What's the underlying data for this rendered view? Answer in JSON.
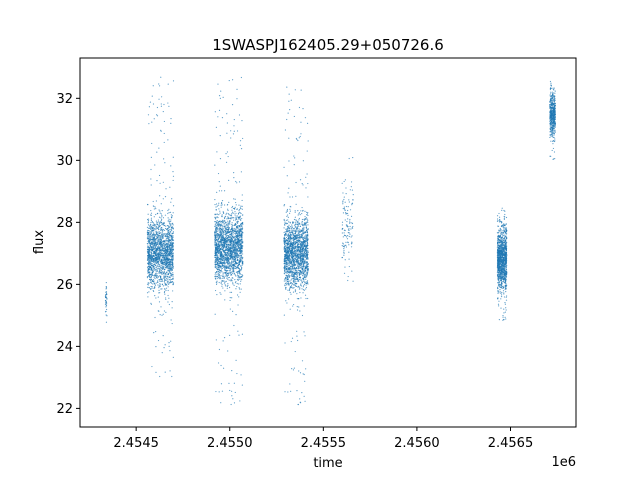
{
  "chart_data": {
    "type": "scatter",
    "title": "1SWASPJ162405.29+050726.6",
    "xlabel": "time",
    "ylabel": "flux",
    "x_offset_label": "1e6",
    "xlim": [
      2454200,
      2456850
    ],
    "ylim": [
      21.4,
      33.3
    ],
    "x_ticks": [
      2454500,
      2455000,
      2455500,
      2456000,
      2456500
    ],
    "x_tick_labels": [
      "2.4545",
      "2.4550",
      "2.4555",
      "2.4560",
      "2.4565"
    ],
    "y_ticks": [
      22,
      24,
      26,
      28,
      30,
      32
    ],
    "y_tick_labels": [
      "22",
      "24",
      "26",
      "28",
      "30",
      "32"
    ],
    "grid": false,
    "legend": "none",
    "marker_color": "#1f77b4",
    "clusters": [
      {
        "x_range": [
          2454335,
          2454345
        ],
        "y_center": 25.5,
        "y_spread": 0.5,
        "y_min": 24.7,
        "y_max": 26.2,
        "n": 40
      },
      {
        "x_range": [
          2454560,
          2454700
        ],
        "y_center": 27.0,
        "y_spread": 1.0,
        "y_min": 23.0,
        "y_max": 32.7,
        "n": 1800
      },
      {
        "x_range": [
          2454920,
          2455070
        ],
        "y_center": 27.2,
        "y_spread": 1.0,
        "y_min": 22.0,
        "y_max": 32.7,
        "n": 2000
      },
      {
        "x_range": [
          2455290,
          2455420
        ],
        "y_center": 27.0,
        "y_spread": 1.0,
        "y_min": 22.0,
        "y_max": 32.6,
        "n": 1800
      },
      {
        "x_range": [
          2455600,
          2455660
        ],
        "y_center": 28.0,
        "y_spread": 1.2,
        "y_min": 25.8,
        "y_max": 30.1,
        "n": 120
      },
      {
        "x_range": [
          2456430,
          2456480
        ],
        "y_center": 26.8,
        "y_spread": 0.9,
        "y_min": 24.8,
        "y_max": 28.5,
        "n": 1200
      },
      {
        "x_range": [
          2456710,
          2456740
        ],
        "y_center": 31.5,
        "y_spread": 0.6,
        "y_min": 30.0,
        "y_max": 32.6,
        "n": 500
      }
    ]
  }
}
